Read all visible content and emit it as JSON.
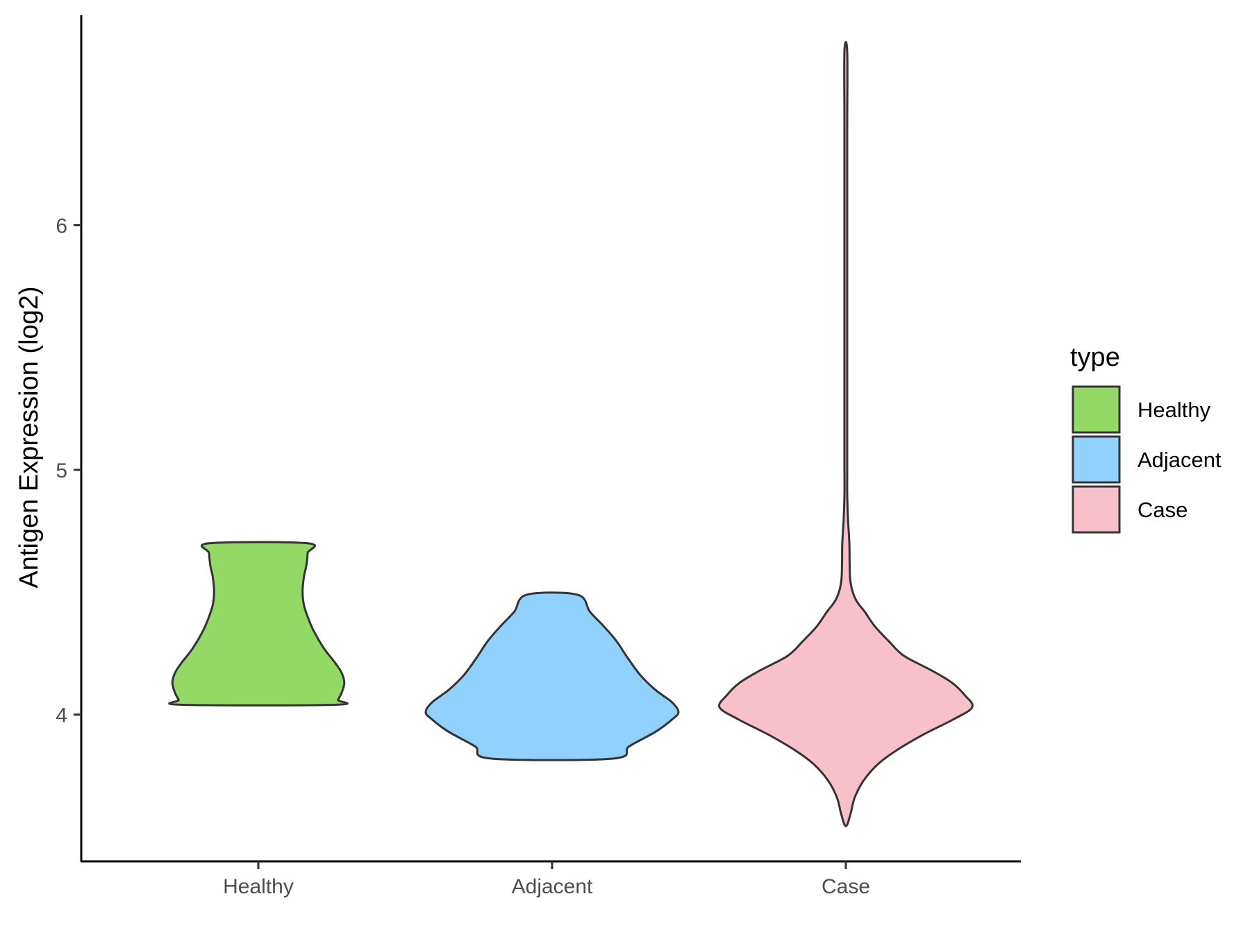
{
  "chart_data": {
    "type": "violin",
    "title": "",
    "xlabel": "",
    "ylabel": "Antigen Expression (log2)",
    "ylim": [
      3.4,
      6.85
    ],
    "yticks": [
      4,
      5,
      6
    ],
    "grid": false,
    "categories": [
      "Healthy",
      "Adjacent",
      "Case"
    ],
    "colors": [
      "#93d966",
      "#91d1fe",
      "#f8c0cb"
    ],
    "outline_color": "#333333",
    "legend": {
      "title": "type",
      "position": "right",
      "entries": [
        "Healthy",
        "Adjacent",
        "Case"
      ]
    },
    "series": [
      {
        "name": "Healthy",
        "min": 4.04,
        "max": 4.7,
        "density_profile": [
          [
            4.04,
            0.61
          ],
          [
            4.06,
            0.63
          ],
          [
            4.09,
            0.66
          ],
          [
            4.13,
            0.68
          ],
          [
            4.17,
            0.66
          ],
          [
            4.21,
            0.61
          ],
          [
            4.27,
            0.52
          ],
          [
            4.34,
            0.44
          ],
          [
            4.4,
            0.39
          ],
          [
            4.45,
            0.36
          ],
          [
            4.5,
            0.35
          ],
          [
            4.56,
            0.36
          ],
          [
            4.61,
            0.38
          ],
          [
            4.66,
            0.39
          ],
          [
            4.7,
            0.39
          ]
        ]
      },
      {
        "name": "Adjacent",
        "min": 3.82,
        "max": 4.49,
        "density_profile": [
          [
            3.82,
            0.48
          ],
          [
            3.87,
            0.61
          ],
          [
            3.93,
            0.82
          ],
          [
            3.98,
            0.95
          ],
          [
            4.01,
            1.0
          ],
          [
            4.05,
            0.95
          ],
          [
            4.1,
            0.82
          ],
          [
            4.16,
            0.7
          ],
          [
            4.23,
            0.6
          ],
          [
            4.3,
            0.51
          ],
          [
            4.36,
            0.41
          ],
          [
            4.42,
            0.3
          ],
          [
            4.49,
            0.2
          ]
        ]
      },
      {
        "name": "Case",
        "min": 3.55,
        "max": 6.71,
        "density_profile": [
          [
            3.55,
            0.008
          ],
          [
            3.6,
            0.04
          ],
          [
            3.66,
            0.07
          ],
          [
            3.73,
            0.14
          ],
          [
            3.8,
            0.26
          ],
          [
            3.86,
            0.42
          ],
          [
            3.92,
            0.62
          ],
          [
            3.98,
            0.85
          ],
          [
            4.03,
            1.0
          ],
          [
            4.08,
            0.94
          ],
          [
            4.13,
            0.84
          ],
          [
            4.18,
            0.68
          ],
          [
            4.24,
            0.46
          ],
          [
            4.3,
            0.34
          ],
          [
            4.36,
            0.23
          ],
          [
            4.42,
            0.15
          ],
          [
            4.46,
            0.09
          ],
          [
            4.5,
            0.055
          ],
          [
            4.55,
            0.035
          ],
          [
            4.62,
            0.03
          ],
          [
            4.7,
            0.028
          ],
          [
            4.8,
            0.017
          ],
          [
            4.9,
            0.007
          ],
          [
            5.0,
            0.006
          ],
          [
            5.1,
            0.008
          ],
          [
            5.2,
            0.006
          ],
          [
            5.4,
            0.003
          ],
          [
            5.7,
            0.003
          ],
          [
            6.0,
            0.003
          ],
          [
            6.4,
            0.003
          ],
          [
            6.71,
            0.003
          ]
        ]
      }
    ]
  }
}
